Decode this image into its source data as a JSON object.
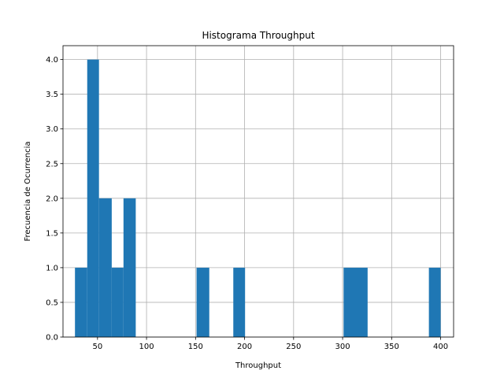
{
  "chart_data": {
    "type": "bar",
    "title": "Histograma Throughput",
    "xlabel": "Throughput",
    "ylabel": "Frecuencia de Ocurrencia",
    "xlim": [
      14.8,
      413.2
    ],
    "ylim": [
      0,
      4.2
    ],
    "grid": true,
    "x_ticks": [
      50,
      100,
      150,
      200,
      250,
      300,
      350,
      400
    ],
    "y_ticks": [
      0.0,
      0.5,
      1.0,
      1.5,
      2.0,
      2.5,
      3.0,
      3.5,
      4.0
    ],
    "x_tick_labels": [
      "50",
      "100",
      "150",
      "200",
      "250",
      "300",
      "350",
      "400"
    ],
    "y_tick_labels": [
      "0.0",
      "0.5",
      "1.0",
      "1.5",
      "2.0",
      "2.5",
      "3.0",
      "3.5",
      "4.0"
    ],
    "bar_color": "#1f77b4",
    "bins": [
      {
        "x0": 27.0,
        "x1": 39.5,
        "count": 1
      },
      {
        "x0": 39.5,
        "x1": 51.5,
        "count": 4
      },
      {
        "x0": 51.5,
        "x1": 64.5,
        "count": 2
      },
      {
        "x0": 64.5,
        "x1": 76.5,
        "count": 1
      },
      {
        "x0": 76.5,
        "x1": 89.0,
        "count": 2
      },
      {
        "x0": 151.0,
        "x1": 164.0,
        "count": 1
      },
      {
        "x0": 188.5,
        "x1": 200.5,
        "count": 1
      },
      {
        "x0": 301.0,
        "x1": 325.5,
        "count": 1
      },
      {
        "x0": 388.0,
        "x1": 400.0,
        "count": 1
      }
    ]
  }
}
